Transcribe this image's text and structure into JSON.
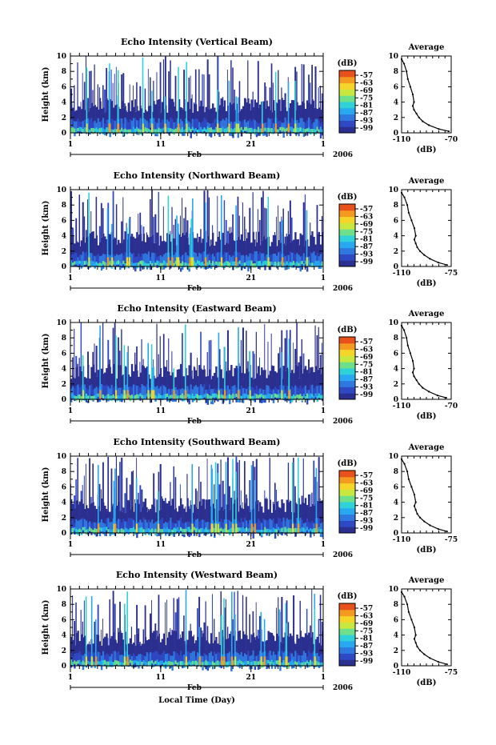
{
  "figure": {
    "xlabel_global": "Local Time (Day)"
  },
  "chart_data": [
    {
      "type": "heatmap",
      "title": "Echo Intensity (Vertical Beam)",
      "ylabel": "Height (km)",
      "ylim": [
        0,
        10
      ],
      "yticks": [
        0,
        2,
        4,
        6,
        8,
        10
      ],
      "xticks": [
        "1",
        "11",
        "21",
        "1"
      ],
      "month_label": "Feb",
      "year_label": "2006",
      "colorbar": {
        "label": "(dB)",
        "ticks": [
          "-57",
          "-63",
          "-69",
          "-75",
          "-81",
          "-87",
          "-93",
          "-99"
        ]
      },
      "average_profile": {
        "title": "Average",
        "xlabel": "(dB)",
        "xticks": [
          "-110",
          "-70"
        ],
        "yticks": [
          0,
          2,
          4,
          6,
          8,
          10
        ],
        "height_km": [
          0.2,
          0.5,
          1,
          1.5,
          2,
          2.5,
          3,
          3.5,
          4,
          5,
          6,
          7,
          8,
          9,
          9.6
        ],
        "power_db": [
          -72,
          -80,
          -88,
          -93,
          -96,
          -98,
          -100,
          -101,
          -100,
          -101,
          -103,
          -105,
          -106,
          -108,
          -110
        ]
      }
    },
    {
      "type": "heatmap",
      "title": "Echo Intensity (Northward Beam)",
      "ylabel": "Height (km)",
      "ylim": [
        0,
        10
      ],
      "yticks": [
        0,
        2,
        4,
        6,
        8,
        10
      ],
      "xticks": [
        "1",
        "11",
        "21",
        "1"
      ],
      "month_label": "Feb",
      "year_label": "2006",
      "colorbar": {
        "label": "(dB)",
        "ticks": [
          "-57",
          "-63",
          "-69",
          "-75",
          "-81",
          "-87",
          "-93",
          "-99"
        ]
      },
      "average_profile": {
        "title": "Average",
        "xlabel": "(dB)",
        "xticks": [
          "-110",
          "-75"
        ],
        "yticks": [
          0,
          2,
          4,
          6,
          8,
          10
        ],
        "height_km": [
          0.2,
          0.5,
          1,
          1.5,
          2,
          2.5,
          3,
          3.5,
          4,
          5,
          6,
          7,
          8,
          9,
          9.6
        ],
        "power_db": [
          -78,
          -84,
          -90,
          -94,
          -97,
          -99,
          -100,
          -101,
          -100,
          -101,
          -103,
          -105,
          -106,
          -108,
          -110
        ]
      }
    },
    {
      "type": "heatmap",
      "title": "Echo Intensity (Eastward Beam)",
      "ylabel": "Height (km)",
      "ylim": [
        0,
        10
      ],
      "yticks": [
        0,
        2,
        4,
        6,
        8,
        10
      ],
      "xticks": [
        "1",
        "11",
        "21",
        "1"
      ],
      "month_label": "Feb",
      "year_label": "2006",
      "colorbar": {
        "label": "(dB)",
        "ticks": [
          "-57",
          "-63",
          "-69",
          "-75",
          "-81",
          "-87",
          "-93",
          "-99"
        ]
      },
      "average_profile": {
        "title": "Average",
        "xlabel": "(dB)",
        "xticks": [
          "-110",
          "-70"
        ],
        "yticks": [
          0,
          2,
          4,
          6,
          8,
          10
        ],
        "height_km": [
          0.2,
          0.5,
          1,
          1.5,
          2,
          2.5,
          3,
          3.5,
          4,
          5,
          6,
          7,
          8,
          9,
          9.6
        ],
        "power_db": [
          -74,
          -81,
          -88,
          -93,
          -96,
          -98,
          -100,
          -101,
          -100,
          -101,
          -103,
          -105,
          -106,
          -108,
          -110
        ]
      }
    },
    {
      "type": "heatmap",
      "title": "Echo Intensity (Southward Beam)",
      "ylabel": "Height (km)",
      "ylim": [
        0,
        10
      ],
      "yticks": [
        0,
        2,
        4,
        6,
        8,
        10
      ],
      "xticks": [
        "1",
        "11",
        "21",
        "1"
      ],
      "month_label": "Feb",
      "year_label": "2006",
      "colorbar": {
        "label": "(dB)",
        "ticks": [
          "-57",
          "-63",
          "-69",
          "-75",
          "-81",
          "-87",
          "-93",
          "-99"
        ]
      },
      "average_profile": {
        "title": "Average",
        "xlabel": "(dB)",
        "xticks": [
          "-110",
          "-75"
        ],
        "yticks": [
          0,
          2,
          4,
          6,
          8,
          10
        ],
        "height_km": [
          0.2,
          0.5,
          1,
          1.5,
          2,
          2.5,
          3,
          3.5,
          4,
          5,
          6,
          7,
          8,
          9,
          9.6
        ],
        "power_db": [
          -78,
          -84,
          -90,
          -94,
          -97,
          -99,
          -100,
          -101,
          -100,
          -101,
          -103,
          -105,
          -106,
          -108,
          -110
        ]
      }
    },
    {
      "type": "heatmap",
      "title": "Echo Intensity (Westward Beam)",
      "ylabel": "Height (km)",
      "ylim": [
        0,
        10
      ],
      "yticks": [
        0,
        2,
        4,
        6,
        8,
        10
      ],
      "xticks": [
        "1",
        "11",
        "21",
        "1"
      ],
      "month_label": "Feb",
      "year_label": "2006",
      "colorbar": {
        "label": "(dB)",
        "ticks": [
          "-57",
          "-63",
          "-69",
          "-75",
          "-81",
          "-87",
          "-93",
          "-99"
        ]
      },
      "average_profile": {
        "title": "Average",
        "xlabel": "(dB)",
        "xticks": [
          "-110",
          "-75"
        ],
        "yticks": [
          0,
          2,
          4,
          6,
          8,
          10
        ],
        "height_km": [
          0.2,
          0.5,
          1,
          1.5,
          2,
          2.5,
          3,
          3.5,
          4,
          5,
          6,
          7,
          8,
          9,
          9.6
        ],
        "power_db": [
          -78,
          -84,
          -90,
          -94,
          -97,
          -99,
          -100,
          -101,
          -100,
          -101,
          -103,
          -105,
          -106,
          -108,
          -110
        ]
      }
    }
  ],
  "colors": {
    "scale": [
      "#2b2f8f",
      "#2f48c4",
      "#2f78e0",
      "#27a8f0",
      "#2fd2d8",
      "#6fe08a",
      "#c8e840",
      "#f5d52a",
      "#f59a20",
      "#e8501c"
    ]
  }
}
